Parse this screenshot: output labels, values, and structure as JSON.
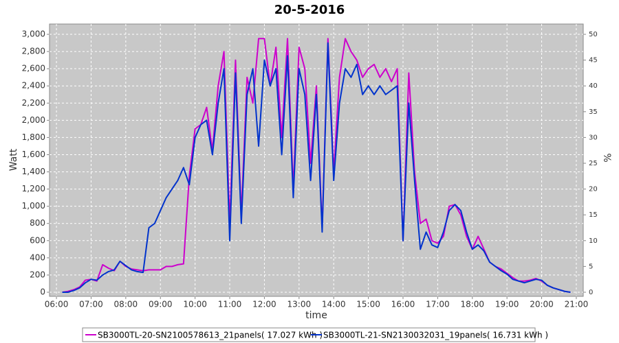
{
  "chart_data": {
    "type": "line",
    "title": "20-5-2016",
    "x_label": "time",
    "y_label": "Watt",
    "y2_label": "%",
    "grid": true,
    "x": [
      "06:10",
      "06:20",
      "06:30",
      "06:40",
      "06:50",
      "07:00",
      "07:10",
      "07:20",
      "07:30",
      "07:40",
      "07:50",
      "08:00",
      "08:10",
      "08:20",
      "08:30",
      "08:40",
      "08:50",
      "09:00",
      "09:10",
      "09:20",
      "09:30",
      "09:40",
      "09:50",
      "10:00",
      "10:10",
      "10:20",
      "10:30",
      "10:40",
      "10:50",
      "11:00",
      "11:10",
      "11:20",
      "11:30",
      "11:40",
      "11:50",
      "12:00",
      "12:10",
      "12:20",
      "12:30",
      "12:40",
      "12:50",
      "13:00",
      "13:10",
      "13:20",
      "13:30",
      "13:40",
      "13:50",
      "14:00",
      "14:10",
      "14:20",
      "14:30",
      "14:40",
      "14:50",
      "15:00",
      "15:10",
      "15:20",
      "15:30",
      "15:40",
      "15:50",
      "16:00",
      "16:10",
      "16:20",
      "16:30",
      "16:40",
      "16:50",
      "17:00",
      "17:10",
      "17:20",
      "17:30",
      "17:40",
      "17:50",
      "18:00",
      "18:10",
      "18:20",
      "18:30",
      "18:40",
      "18:50",
      "19:00",
      "19:10",
      "19:20",
      "19:30",
      "19:40",
      "19:50",
      "20:00",
      "20:10",
      "20:20",
      "20:30",
      "20:40",
      "20:50"
    ],
    "series": [
      {
        "name": "SB3000TL-20-SN2100578613_21panels( 17.027 kWh )",
        "color": "#cc00cc",
        "values": [
          0,
          10,
          30,
          60,
          140,
          150,
          130,
          320,
          280,
          250,
          360,
          300,
          270,
          260,
          250,
          260,
          260,
          260,
          300,
          300,
          320,
          330,
          1350,
          1900,
          1950,
          2150,
          1650,
          2400,
          2800,
          800,
          2700,
          900,
          2500,
          2200,
          2950,
          2950,
          2400,
          2850,
          1800,
          2950,
          1200,
          2850,
          2600,
          1500,
          2400,
          750,
          2950,
          1400,
          2500,
          2950,
          2800,
          2700,
          2500,
          2600,
          2650,
          2500,
          2600,
          2450,
          2600,
          600,
          2550,
          1400,
          800,
          850,
          600,
          570,
          650,
          1000,
          1020,
          900,
          650,
          500,
          650,
          500,
          350,
          300,
          270,
          220,
          170,
          130,
          130,
          140,
          160,
          130,
          80,
          50,
          30,
          10,
          0
        ]
      },
      {
        "name": "SB3000TL-21-SN2130032031_19panels( 16.731 kWh )",
        "color": "#0033cc",
        "values": [
          0,
          0,
          20,
          50,
          110,
          150,
          140,
          200,
          240,
          260,
          360,
          310,
          260,
          240,
          230,
          750,
          800,
          950,
          1100,
          1200,
          1300,
          1450,
          1250,
          1800,
          1950,
          2000,
          1600,
          2200,
          2600,
          600,
          2550,
          800,
          2300,
          2600,
          1700,
          2700,
          2400,
          2600,
          1600,
          2750,
          1100,
          2600,
          2300,
          1300,
          2300,
          700,
          2900,
          1300,
          2200,
          2600,
          2500,
          2650,
          2300,
          2400,
          2300,
          2400,
          2300,
          2350,
          2400,
          600,
          2200,
          1300,
          500,
          700,
          550,
          520,
          700,
          950,
          1020,
          950,
          700,
          500,
          550,
          480,
          350,
          300,
          250,
          210,
          150,
          130,
          110,
          130,
          150,
          140,
          80,
          50,
          30,
          10,
          0
        ]
      }
    ],
    "xlim": [
      "05:48",
      "21:12"
    ],
    "xticks": [
      "06:00",
      "07:00",
      "08:00",
      "09:00",
      "10:00",
      "11:00",
      "12:00",
      "13:00",
      "14:00",
      "15:00",
      "16:00",
      "17:00",
      "18:00",
      "19:00",
      "20:00",
      "21:00"
    ],
    "ylim": [
      -48,
      3120
    ],
    "yticks": [
      0,
      200,
      400,
      600,
      800,
      {
        "value": 1000,
        "label": "1,000"
      },
      {
        "value": 1200,
        "label": "1,200"
      },
      {
        "value": 1400,
        "label": "1,400"
      },
      {
        "value": 1600,
        "label": "1,600"
      },
      {
        "value": 1800,
        "label": "1,800"
      },
      {
        "value": 2000,
        "label": "2,000"
      },
      {
        "value": 2200,
        "label": "2,200"
      },
      {
        "value": 2400,
        "label": "2,400"
      },
      {
        "value": 2600,
        "label": "2,600"
      },
      {
        "value": 2800,
        "label": "2,800"
      },
      {
        "value": 3000,
        "label": "3,000"
      }
    ],
    "y2lim": [
      -0.8,
      52
    ],
    "y2ticks": [
      0,
      5,
      10,
      15,
      20,
      25,
      30,
      35,
      40,
      45,
      50
    ]
  }
}
